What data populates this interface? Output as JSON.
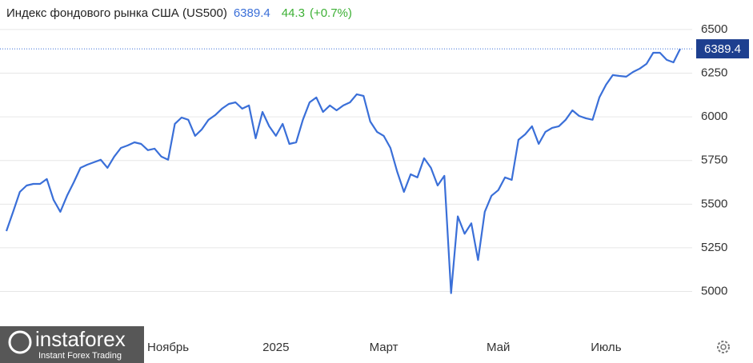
{
  "chart_data": {
    "type": "line",
    "title": "Индекс фондового рынка США (US500)",
    "change": 44.3,
    "change_pct": {
      "value": 0.7,
      "label": "(+0.7%)"
    },
    "color": "#3a6fd8",
    "categories": [
      null,
      null,
      null,
      null,
      null,
      null,
      null,
      null,
      null,
      null,
      null,
      null,
      null,
      null,
      null,
      null,
      null,
      null,
      null,
      null,
      null,
      null,
      null,
      null,
      "Ноябрь",
      null,
      null,
      null,
      null,
      null,
      null,
      null,
      null,
      null,
      null,
      null,
      null,
      null,
      null,
      null,
      "2025",
      null,
      null,
      null,
      null,
      null,
      null,
      null,
      null,
      null,
      null,
      null,
      null,
      null,
      null,
      null,
      "Март",
      null,
      null,
      null,
      null,
      null,
      null,
      null,
      null,
      null,
      null,
      null,
      null,
      null,
      null,
      null,
      null,
      "Май",
      null,
      null,
      null,
      null,
      null,
      null,
      null,
      null,
      null,
      null,
      null,
      null,
      null,
      null,
      null,
      "Июль",
      null,
      null,
      null,
      null,
      null,
      null,
      null,
      null,
      null,
      null,
      null
    ],
    "values": [
      5346,
      5456,
      5570,
      5607,
      5616,
      5616,
      5644,
      5525,
      5456,
      5548,
      5625,
      5708,
      5726,
      5740,
      5754,
      5708,
      5772,
      5822,
      5836,
      5854,
      5845,
      5809,
      5818,
      5772,
      5754,
      5960,
      5996,
      5983,
      5891,
      5928,
      5983,
      6010,
      6047,
      6074,
      6083,
      6047,
      6065,
      5877,
      6028,
      5946,
      5891,
      5960,
      5845,
      5854,
      5983,
      6083,
      6111,
      6028,
      6065,
      6037,
      6065,
      6083,
      6129,
      6120,
      5973,
      5914,
      5891,
      5822,
      5685,
      5570,
      5671,
      5653,
      5763,
      5708,
      5607,
      5662,
      4990,
      5430,
      5330,
      5390,
      5180,
      5456,
      5548,
      5580,
      5653,
      5639,
      5868,
      5900,
      5946,
      5845,
      5914,
      5937,
      5946,
      5983,
      6037,
      6005,
      5992,
      5983,
      6111,
      6184,
      6239,
      6234,
      6230,
      6257,
      6276,
      6303,
      6367,
      6367,
      6326,
      6312,
      6389.4
    ],
    "ylim": [
      4746,
      6669
    ],
    "yticks": [
      5000,
      5250,
      5500,
      5750,
      6000,
      6250,
      6500
    ],
    "grid": true,
    "watermark": {
      "brand": "instaforex",
      "tagline": "Instant Forex Trading"
    }
  }
}
